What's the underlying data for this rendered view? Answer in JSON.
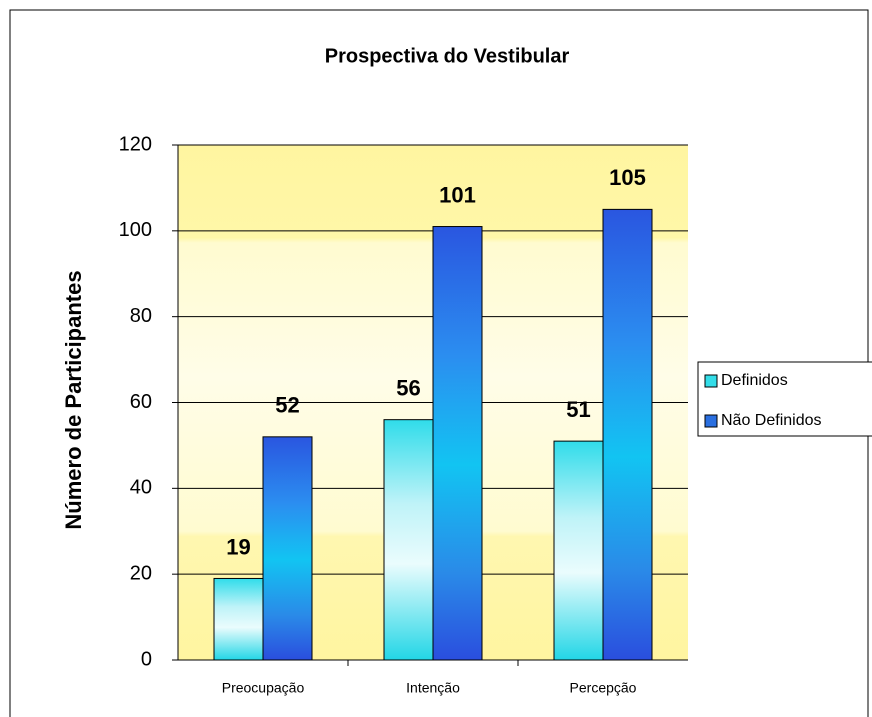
{
  "chart_data": {
    "type": "bar",
    "title": "Prospectiva do Vestibular",
    "y_label": "Número de Participantes",
    "categories": [
      "Preocupação",
      "Intenção",
      "Percepção"
    ],
    "series": [
      {
        "name": "Definidos",
        "color": "#33dde8",
        "values": [
          19,
          56,
          51
        ]
      },
      {
        "name": "Não Definidos",
        "color": "#2a6fe0",
        "values": [
          52,
          101,
          105
        ]
      }
    ],
    "ylim": [
      0,
      120
    ],
    "yticks": [
      0,
      20,
      40,
      60,
      80,
      100,
      120
    ],
    "grid": true,
    "legend": "right"
  }
}
